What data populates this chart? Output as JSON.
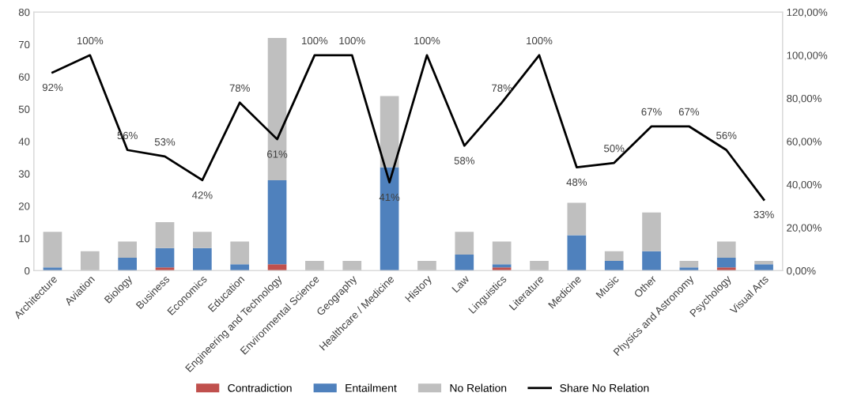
{
  "chart_data": {
    "type": "bar",
    "stacked": true,
    "legend": "bottom",
    "grid": false,
    "categories": [
      "Architecture",
      "Aviation",
      "Biology",
      "Business",
      "Economics",
      "Education",
      "Engineering and Technology",
      "Environmental Science",
      "Geography",
      "Healthcare / Medicine",
      "History",
      "Law",
      "Linguistics",
      "Literature",
      "Medicine",
      "Music",
      "Other",
      "Physics and Astronomy",
      "Psychology",
      "Visual Arts"
    ],
    "series": [
      {
        "name": "Contradiction",
        "color": "#c0504d",
        "values": [
          0,
          0,
          0,
          1,
          0,
          0,
          2,
          0,
          0,
          0,
          0,
          0,
          1,
          0,
          0,
          0,
          0,
          0,
          1,
          0
        ]
      },
      {
        "name": "Entailment",
        "color": "#4f81bd",
        "values": [
          1,
          0,
          4,
          6,
          7,
          2,
          26,
          0,
          0,
          32,
          0,
          5,
          1,
          0,
          11,
          3,
          6,
          1,
          3,
          2
        ]
      },
      {
        "name": "No Relation",
        "color": "#bfbfbf",
        "values": [
          11,
          6,
          5,
          8,
          5,
          7,
          44,
          3,
          3,
          22,
          3,
          7,
          7,
          3,
          10,
          3,
          12,
          2,
          5,
          1
        ]
      },
      {
        "name": "Share No Relation",
        "type": "line",
        "axis": "y2",
        "color": "#000000",
        "marker": "none",
        "values": [
          92,
          100,
          56,
          53,
          42,
          78,
          61,
          100,
          100,
          41,
          100,
          58,
          78,
          100,
          48,
          50,
          67,
          67,
          56,
          33
        ],
        "value_labels": [
          "92%",
          "100%",
          "56%",
          "53%",
          "42%",
          "78%",
          "61%",
          "100%",
          "100%",
          "41%",
          "100%",
          "58%",
          "78%",
          "100%",
          "48%",
          "50%",
          "67%",
          "67%",
          "56%",
          "33%"
        ]
      }
    ],
    "ylim": [
      0,
      80
    ],
    "yticks": [
      0,
      10,
      20,
      30,
      40,
      50,
      60,
      70,
      80
    ],
    "y2lim": [
      0,
      120
    ],
    "y2ticks": [
      {
        "value": 0,
        "label": "0,00%"
      },
      {
        "value": 20,
        "label": "20,00%"
      },
      {
        "value": 40,
        "label": "40,00%"
      },
      {
        "value": 60,
        "label": "60,00%"
      },
      {
        "value": 80,
        "label": "80,00%"
      },
      {
        "value": 100,
        "label": "100,00%"
      },
      {
        "value": 120,
        "label": "120,00%"
      }
    ]
  }
}
